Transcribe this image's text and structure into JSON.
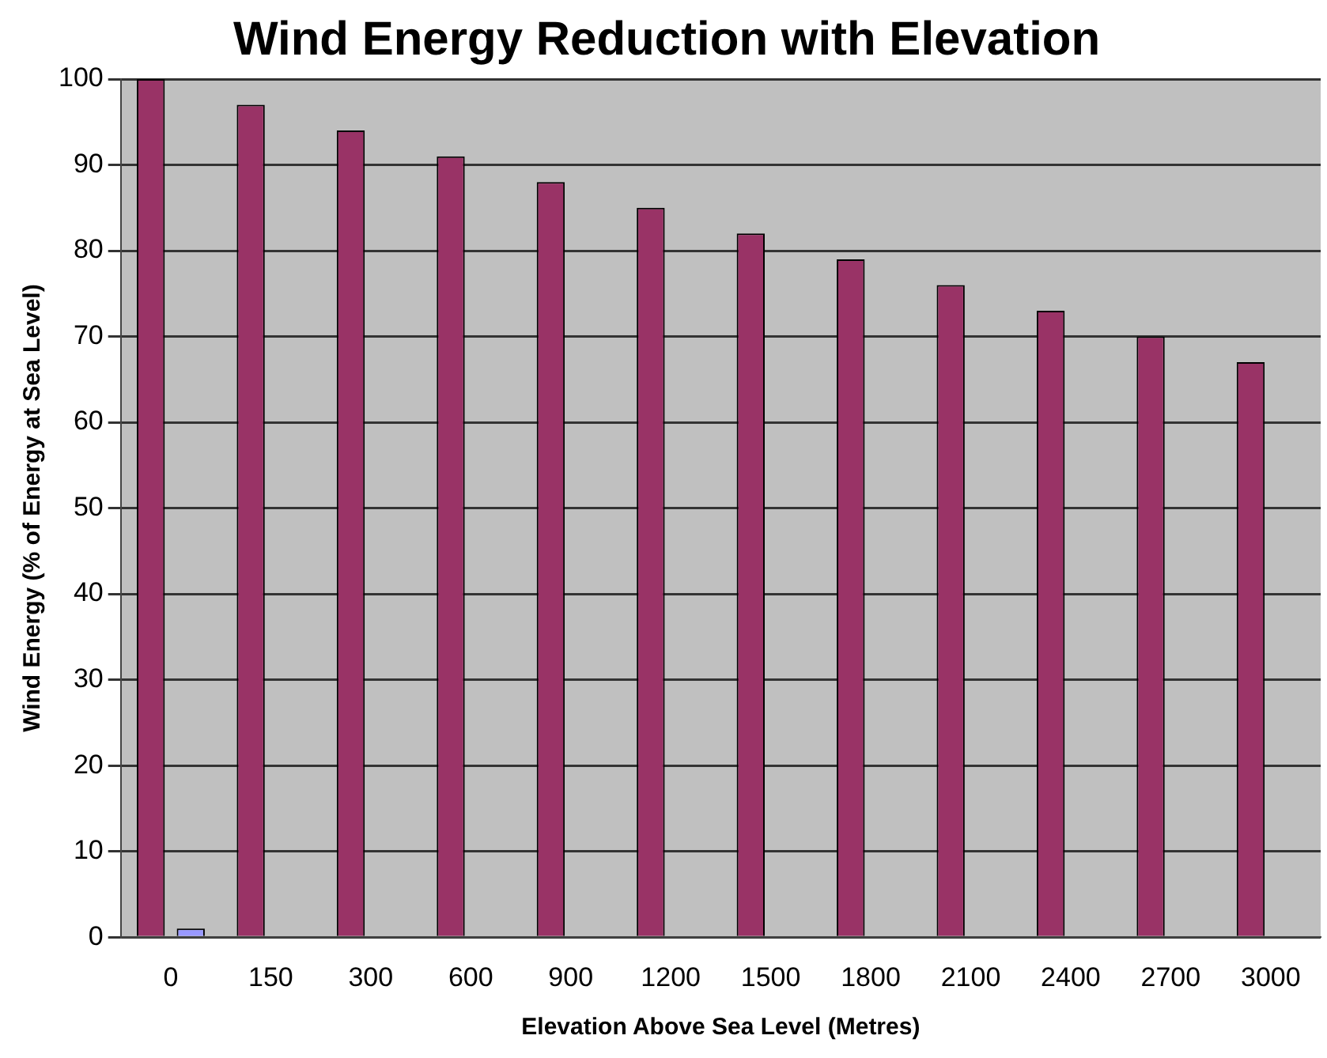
{
  "chart_data": {
    "type": "bar",
    "title": "Wind Energy Reduction with Elevation",
    "xlabel": "Elevation Above Sea Level (Metres)",
    "ylabel": "Wind Energy (% of Energy at Sea Level)",
    "categories": [
      "0",
      "150",
      "300",
      "600",
      "900",
      "1200",
      "1500",
      "1800",
      "2100",
      "2400",
      "2700",
      "3000"
    ],
    "series": [
      {
        "color": "#993366",
        "values": [
          100,
          97,
          94,
          91,
          88,
          85,
          82,
          79,
          76,
          73,
          70,
          67
        ]
      },
      {
        "color": "#9999ff",
        "values": [
          1,
          null,
          null,
          null,
          null,
          null,
          null,
          null,
          null,
          null,
          null,
          null
        ]
      }
    ],
    "ylim": [
      0,
      100
    ],
    "yticks": [
      0,
      10,
      20,
      30,
      40,
      50,
      60,
      70,
      80,
      90,
      100
    ],
    "grid": "y",
    "legend": false
  }
}
